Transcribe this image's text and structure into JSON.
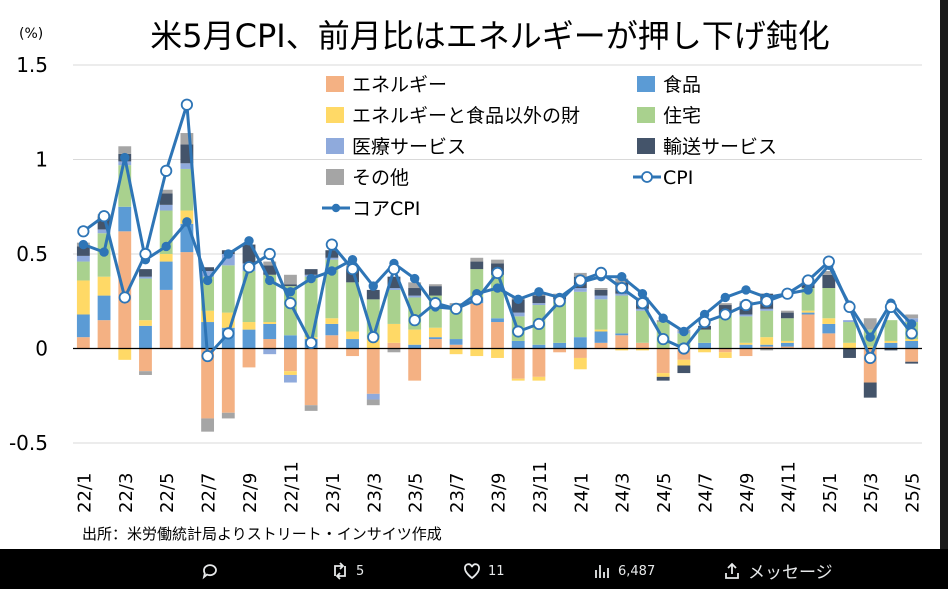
{
  "chart_data": {
    "type": "bar",
    "title": "米5月CPI、前月比はエネルギーが押し下げ鈍化",
    "unit_label": "(%)",
    "ylim": [
      -0.5,
      1.5
    ],
    "yticks": [
      "-0.5",
      "0",
      "0.5",
      "1",
      "1.5"
    ],
    "grid": true,
    "legend_position": "top-center",
    "categories": [
      "22/1",
      "22/2",
      "22/3",
      "22/4",
      "22/5",
      "22/6",
      "22/7",
      "22/8",
      "22/9",
      "22/10",
      "22/11",
      "22/12",
      "23/1",
      "23/2",
      "23/3",
      "23/4",
      "23/5",
      "23/6",
      "23/7",
      "23/8",
      "23/9",
      "23/10",
      "23/11",
      "23/12",
      "24/1",
      "24/2",
      "24/3",
      "24/4",
      "24/5",
      "24/6",
      "24/7",
      "24/8",
      "24/9",
      "24/10",
      "24/11",
      "24/12",
      "25/1",
      "25/2",
      "25/3",
      "25/4",
      "25/5"
    ],
    "tick_labels": [
      "22/1",
      "22/3",
      "22/5",
      "22/7",
      "22/9",
      "22/11",
      "23/1",
      "23/3",
      "23/5",
      "23/7",
      "23/9",
      "23/11",
      "24/1",
      "24/3",
      "24/5",
      "24/7",
      "24/9",
      "24/11",
      "25/1",
      "25/3",
      "25/5"
    ],
    "series": [
      {
        "name": "エネルギー",
        "kind": "bar",
        "color": "#f4b183",
        "values": [
          0.06,
          0.15,
          0.62,
          -0.12,
          0.31,
          0.51,
          -0.37,
          -0.34,
          -0.1,
          0.05,
          -0.12,
          -0.3,
          0.07,
          -0.04,
          -0.24,
          0.03,
          -0.17,
          0.05,
          0.02,
          0.24,
          0.14,
          -0.16,
          -0.15,
          -0.02,
          -0.05,
          0.03,
          0.07,
          0.03,
          -0.13,
          -0.06,
          0.0,
          -0.02,
          -0.04,
          0.01,
          0.01,
          0.18,
          0.08,
          0.0,
          -0.18,
          0.0,
          -0.07
        ]
      },
      {
        "name": "食品",
        "kind": "bar",
        "color": "#5b9bd5",
        "values": [
          0.12,
          0.13,
          0.13,
          0.12,
          0.15,
          0.15,
          0.14,
          0.11,
          0.1,
          0.08,
          0.07,
          0.05,
          0.06,
          0.05,
          0.0,
          0.0,
          0.02,
          0.01,
          0.03,
          0.03,
          0.02,
          0.04,
          0.02,
          0.03,
          0.06,
          0.06,
          0.01,
          0.0,
          0.0,
          0.0,
          0.03,
          0.0,
          0.02,
          0.01,
          0.02,
          0.01,
          0.05,
          0.0,
          0.0,
          0.03,
          0.04
        ]
      },
      {
        "name": "エネルギーと食品以外の財",
        "kind": "bar",
        "color": "#ffd966",
        "values": [
          0.18,
          0.1,
          -0.06,
          0.03,
          0.04,
          0.07,
          0.06,
          0.08,
          0.04,
          0.01,
          -0.02,
          0.01,
          0.03,
          0.04,
          0.06,
          0.1,
          0.08,
          0.05,
          -0.03,
          -0.04,
          -0.05,
          -0.01,
          -0.02,
          0.0,
          -0.06,
          0.01,
          -0.01,
          -0.01,
          -0.02,
          -0.03,
          -0.02,
          -0.03,
          0.01,
          0.04,
          0.01,
          0.01,
          0.03,
          0.03,
          0.01,
          0.01,
          0.01
        ]
      },
      {
        "name": "住宅",
        "kind": "bar",
        "color": "#a9d18e",
        "values": [
          0.1,
          0.23,
          0.22,
          0.22,
          0.23,
          0.22,
          0.18,
          0.25,
          0.27,
          0.25,
          0.26,
          0.32,
          0.31,
          0.26,
          0.2,
          0.18,
          0.17,
          0.17,
          0.16,
          0.15,
          0.23,
          0.13,
          0.21,
          0.22,
          0.24,
          0.16,
          0.2,
          0.17,
          0.14,
          0.08,
          0.07,
          0.18,
          0.14,
          0.14,
          0.12,
          0.12,
          0.16,
          0.11,
          0.09,
          0.11,
          0.09
        ]
      },
      {
        "name": "医療サービス",
        "kind": "bar",
        "color": "#8faadc",
        "values": [
          0.03,
          0.02,
          0.02,
          0.01,
          0.03,
          0.03,
          0.03,
          0.06,
          0.04,
          -0.03,
          -0.04,
          0.01,
          0.01,
          0.0,
          -0.03,
          0.01,
          0.01,
          0.0,
          0.0,
          0.0,
          0.0,
          0.02,
          0.01,
          0.01,
          0.02,
          0.02,
          0.01,
          0.01,
          0.0,
          0.01,
          0.0,
          0.0,
          0.01,
          0.01,
          0.0,
          0.0,
          0.0,
          0.01,
          0.0,
          0.0,
          0.02
        ]
      },
      {
        "name": "輸送サービス",
        "kind": "bar",
        "color": "#44546a",
        "values": [
          0.05,
          0.07,
          0.04,
          0.04,
          0.06,
          0.1,
          0.02,
          0.02,
          0.1,
          0.05,
          0.01,
          0.03,
          0.04,
          0.07,
          0.05,
          0.06,
          0.04,
          0.05,
          0.0,
          0.04,
          0.06,
          0.07,
          0.04,
          0.02,
          0.06,
          0.03,
          0.06,
          0.05,
          -0.02,
          -0.04,
          0.02,
          0.05,
          0.06,
          0.08,
          0.03,
          0.03,
          0.07,
          -0.05,
          -0.08,
          -0.01,
          -0.01
        ]
      },
      {
        "name": "その他",
        "kind": "bar",
        "color": "#a5a5a5",
        "values": [
          0.02,
          0.01,
          0.04,
          -0.02,
          0.02,
          0.06,
          -0.07,
          -0.03,
          0.0,
          0.02,
          0.05,
          -0.03,
          0.0,
          0.02,
          -0.03,
          -0.02,
          0.03,
          0.01,
          0.03,
          0.02,
          0.02,
          0.01,
          0.01,
          0.01,
          0.02,
          0.01,
          0.02,
          0.01,
          0.01,
          0.01,
          0.0,
          0.01,
          0.01,
          -0.01,
          0.01,
          0.02,
          0.02,
          0.0,
          0.06,
          0.0,
          0.02
        ]
      },
      {
        "name": "CPI",
        "kind": "line",
        "color": "#2e75b6",
        "marker": "hollow",
        "values": [
          0.62,
          0.7,
          0.27,
          0.5,
          0.94,
          1.29,
          -0.04,
          0.08,
          0.43,
          0.5,
          0.24,
          0.03,
          0.55,
          0.42,
          0.06,
          0.42,
          0.15,
          0.24,
          0.21,
          0.26,
          0.4,
          0.09,
          0.13,
          0.25,
          0.36,
          0.4,
          0.32,
          0.24,
          0.05,
          0.0,
          0.14,
          0.18,
          0.23,
          0.25,
          0.29,
          0.36,
          0.46,
          0.22,
          -0.05,
          0.22,
          0.08
        ]
      },
      {
        "name": "コアCPI",
        "kind": "line",
        "color": "#2e75b6",
        "marker": "filled",
        "values": [
          0.55,
          0.51,
          1.01,
          0.47,
          0.54,
          0.67,
          0.36,
          0.5,
          0.57,
          0.36,
          0.3,
          0.37,
          0.41,
          0.47,
          0.33,
          0.45,
          0.37,
          0.22,
          0.21,
          0.29,
          0.32,
          0.26,
          0.3,
          0.27,
          0.35,
          0.38,
          0.38,
          0.29,
          0.16,
          0.09,
          0.18,
          0.27,
          0.31,
          0.27,
          0.29,
          0.31,
          0.44,
          0.23,
          0.06,
          0.24,
          0.13
        ]
      }
    ]
  },
  "source_note": "出所：米労働統計局よりストリート・インサイツ作成",
  "toolbar": {
    "retweet_count": "5",
    "like_count": "11",
    "view_count": "6,487",
    "message_label": "メッセージ"
  }
}
